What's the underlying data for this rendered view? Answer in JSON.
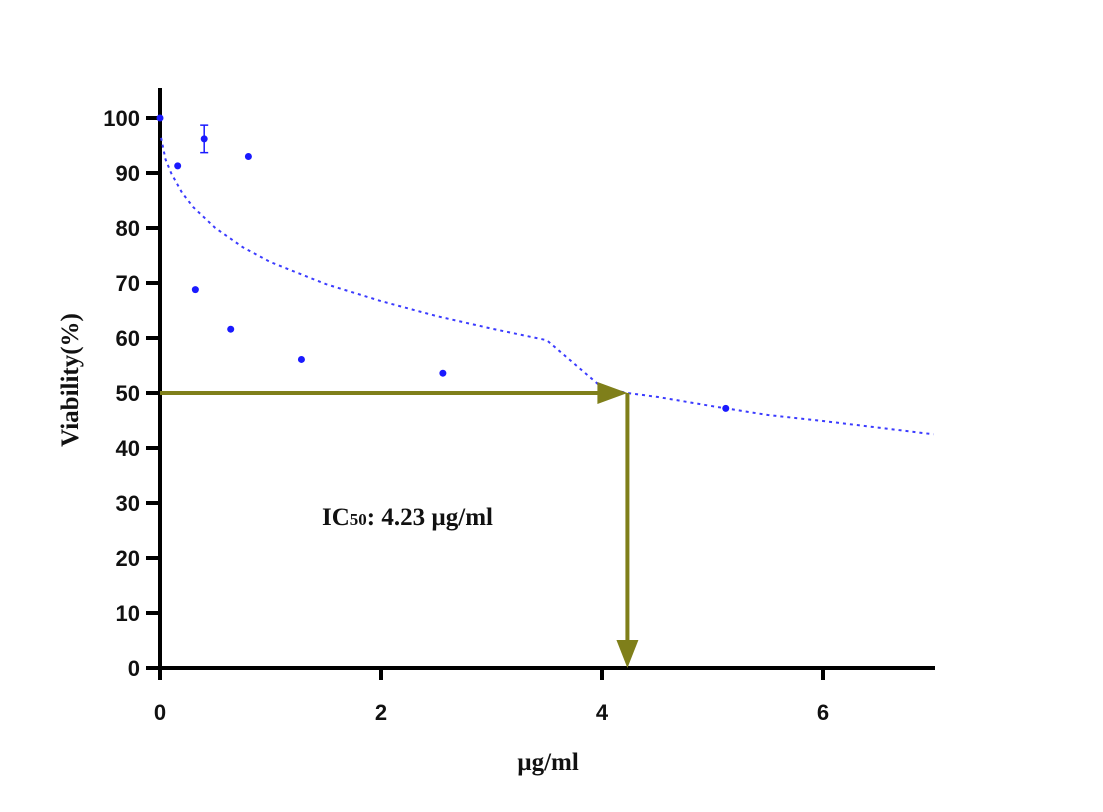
{
  "chart_data": {
    "type": "scatter",
    "xlabel": "µg/ml",
    "ylabel": "Viability(%)",
    "xlim": [
      0,
      7
    ],
    "ylim": [
      0,
      100
    ],
    "xticks": [
      0,
      2,
      4,
      6
    ],
    "yticks": [
      0,
      10,
      20,
      30,
      40,
      50,
      60,
      70,
      80,
      90,
      100
    ],
    "grid": false,
    "series": [
      {
        "points": [
          {
            "x": 0,
            "y": 100
          },
          {
            "x": 0.16,
            "y": 91.3
          },
          {
            "x": 0.32,
            "y": 68.8
          },
          {
            "x": 0.4,
            "y": 96.2,
            "err": 2.5
          },
          {
            "x": 0.64,
            "y": 61.6
          },
          {
            "x": 0.8,
            "y": 93
          },
          {
            "x": 1.28,
            "y": 56.1
          },
          {
            "x": 2.56,
            "y": 53.6
          },
          {
            "x": 5.12,
            "y": 47.2
          }
        ],
        "color": "#1a1aff"
      }
    ],
    "fit": {
      "style": "dotted",
      "color": "#3b3bff",
      "x": [
        0.01,
        0.05,
        0.1,
        0.2,
        0.3,
        0.5,
        0.75,
        1.0,
        1.5,
        2.0,
        2.5,
        3.0,
        3.5,
        4.0,
        4.23,
        4.5,
        5.0,
        5.5,
        6.0,
        6.5,
        7.0
      ],
      "y": [
        96.4,
        92.5,
        90.0,
        86.4,
        83.8,
        80.0,
        76.5,
        73.8,
        69.8,
        66.7,
        64.0,
        61.7,
        59.6,
        51.0,
        50.0,
        49.3,
        47.6,
        46.0,
        44.9,
        43.7,
        42.5
      ]
    },
    "annotation": {
      "prefix": "IC",
      "subscript": "50",
      "suffix": ": 4.23 µg/ml",
      "ic50_x": 4.23,
      "ic50_y": 50,
      "arrow_color": "#7f7f1a"
    }
  }
}
